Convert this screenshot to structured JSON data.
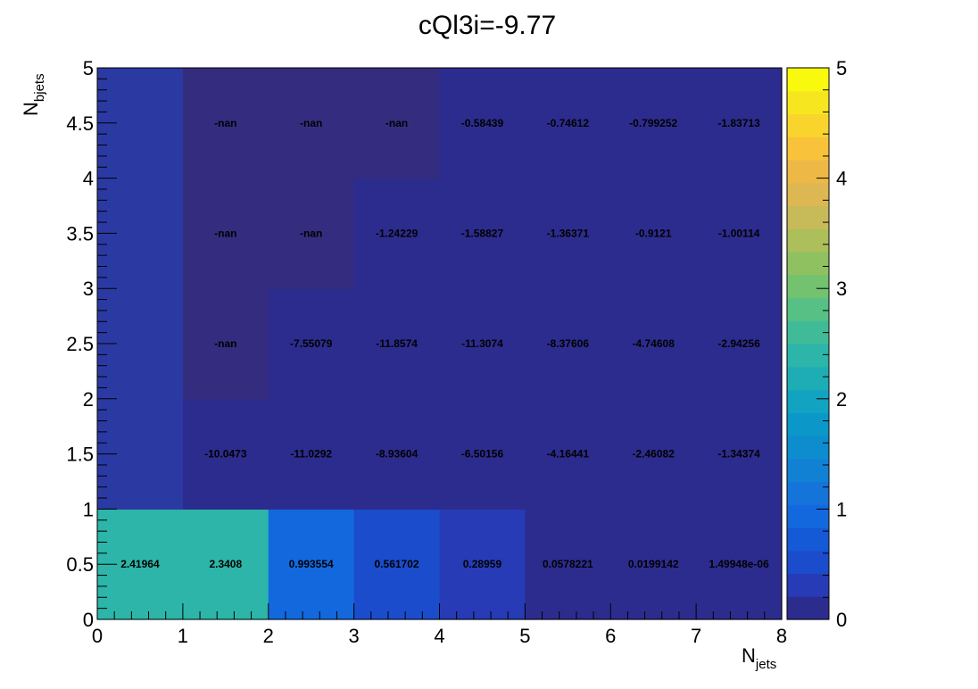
{
  "chart_data": {
    "type": "heatmap",
    "title": "cQl3i=-9.77",
    "xlabel": {
      "main": "N",
      "sub": "jets"
    },
    "ylabel": {
      "main": "N",
      "sub": "bjets"
    },
    "xlim": [
      0,
      8
    ],
    "ylim": [
      0,
      5
    ],
    "x_bin_edges": [
      0,
      1,
      2,
      3,
      4,
      5,
      6,
      7,
      8
    ],
    "y_bin_edges": [
      0,
      1,
      2,
      3,
      4,
      5
    ],
    "x_tick_labels": [
      "0",
      "1",
      "2",
      "3",
      "4",
      "5",
      "6",
      "7",
      "8"
    ],
    "y_tick_labels": [
      "0",
      "0.5",
      "1",
      "1.5",
      "2",
      "2.5",
      "3",
      "3.5",
      "4",
      "4.5",
      "5"
    ],
    "colorbar": {
      "min": 0,
      "max": 5,
      "tick_labels": [
        "0",
        "1",
        "2",
        "3",
        "4",
        "5"
      ]
    },
    "cells": [
      {
        "x": 0.5,
        "y": 0.5,
        "value": 2.41964,
        "label": "2.41964"
      },
      {
        "x": 1.5,
        "y": 0.5,
        "value": 2.3408,
        "label": "2.3408"
      },
      {
        "x": 2.5,
        "y": 0.5,
        "value": 0.993554,
        "label": "0.993554"
      },
      {
        "x": 3.5,
        "y": 0.5,
        "value": 0.561702,
        "label": "0.561702"
      },
      {
        "x": 4.5,
        "y": 0.5,
        "value": 0.28959,
        "label": "0.28959"
      },
      {
        "x": 5.5,
        "y": 0.5,
        "value": 0.0578221,
        "label": "0.0578221"
      },
      {
        "x": 6.5,
        "y": 0.5,
        "value": 0.0199142,
        "label": "0.0199142"
      },
      {
        "x": 7.5,
        "y": 0.5,
        "value": 1.49948e-06,
        "label": "1.49948e-06"
      },
      {
        "x": 0.5,
        "y": 1.5,
        "value": null,
        "label": ""
      },
      {
        "x": 1.5,
        "y": 1.5,
        "value": -10.0473,
        "label": "-10.0473"
      },
      {
        "x": 2.5,
        "y": 1.5,
        "value": -11.0292,
        "label": "-11.0292"
      },
      {
        "x": 3.5,
        "y": 1.5,
        "value": -8.93604,
        "label": "-8.93604"
      },
      {
        "x": 4.5,
        "y": 1.5,
        "value": -6.50156,
        "label": "-6.50156"
      },
      {
        "x": 5.5,
        "y": 1.5,
        "value": -4.16441,
        "label": "-4.16441"
      },
      {
        "x": 6.5,
        "y": 1.5,
        "value": -2.46082,
        "label": "-2.46082"
      },
      {
        "x": 7.5,
        "y": 1.5,
        "value": -1.34374,
        "label": "-1.34374"
      },
      {
        "x": 0.5,
        "y": 2.5,
        "value": null,
        "label": ""
      },
      {
        "x": 1.5,
        "y": 2.5,
        "value": null,
        "label": "-nan"
      },
      {
        "x": 2.5,
        "y": 2.5,
        "value": -7.55079,
        "label": "-7.55079"
      },
      {
        "x": 3.5,
        "y": 2.5,
        "value": -11.8574,
        "label": "-11.8574"
      },
      {
        "x": 4.5,
        "y": 2.5,
        "value": -11.3074,
        "label": "-11.3074"
      },
      {
        "x": 5.5,
        "y": 2.5,
        "value": -8.37606,
        "label": "-8.37606"
      },
      {
        "x": 6.5,
        "y": 2.5,
        "value": -4.74608,
        "label": "-4.74608"
      },
      {
        "x": 7.5,
        "y": 2.5,
        "value": -2.94256,
        "label": "-2.94256"
      },
      {
        "x": 0.5,
        "y": 3.5,
        "value": null,
        "label": ""
      },
      {
        "x": 1.5,
        "y": 3.5,
        "value": null,
        "label": "-nan"
      },
      {
        "x": 2.5,
        "y": 3.5,
        "value": null,
        "label": "-nan"
      },
      {
        "x": 3.5,
        "y": 3.5,
        "value": -1.24229,
        "label": "-1.24229"
      },
      {
        "x": 4.5,
        "y": 3.5,
        "value": -1.58827,
        "label": "-1.58827"
      },
      {
        "x": 5.5,
        "y": 3.5,
        "value": -1.36371,
        "label": "-1.36371"
      },
      {
        "x": 6.5,
        "y": 3.5,
        "value": -0.9121,
        "label": "-0.9121"
      },
      {
        "x": 7.5,
        "y": 3.5,
        "value": -1.00114,
        "label": "-1.00114"
      },
      {
        "x": 0.5,
        "y": 4.5,
        "value": null,
        "label": ""
      },
      {
        "x": 1.5,
        "y": 4.5,
        "value": null,
        "label": "-nan"
      },
      {
        "x": 2.5,
        "y": 4.5,
        "value": null,
        "label": "-nan"
      },
      {
        "x": 3.5,
        "y": 4.5,
        "value": null,
        "label": "-nan"
      },
      {
        "x": 4.5,
        "y": 4.5,
        "value": -0.58439,
        "label": "-0.58439"
      },
      {
        "x": 5.5,
        "y": 4.5,
        "value": -0.74612,
        "label": "-0.74612"
      },
      {
        "x": 6.5,
        "y": 4.5,
        "value": -0.799252,
        "label": "-0.799252"
      },
      {
        "x": 7.5,
        "y": 4.5,
        "value": -1.83713,
        "label": "-1.83713"
      }
    ],
    "colors": {
      "palette": [
        "#2c2c8e",
        "#263bb5",
        "#1a4ccc",
        "#145ad6",
        "#1368de",
        "#1574da",
        "#1181d3",
        "#0d8dcd",
        "#0b98c8",
        "#12a3c0",
        "#1eadb5",
        "#2cb5a8",
        "#3fbb98",
        "#57c084",
        "#72c26f",
        "#8fc160",
        "#acbf5a",
        "#c6bb58",
        "#dcb752",
        "#eeb846",
        "#f8c33a",
        "#f9d42d",
        "#f6e61f",
        "#f9f90e"
      ],
      "underflow_fill": "#2c2c8e",
      "overflow_fill": "#f9f90e",
      "empty_fill": "#2b3aa3",
      "nan_fill": "#342d7f"
    }
  }
}
